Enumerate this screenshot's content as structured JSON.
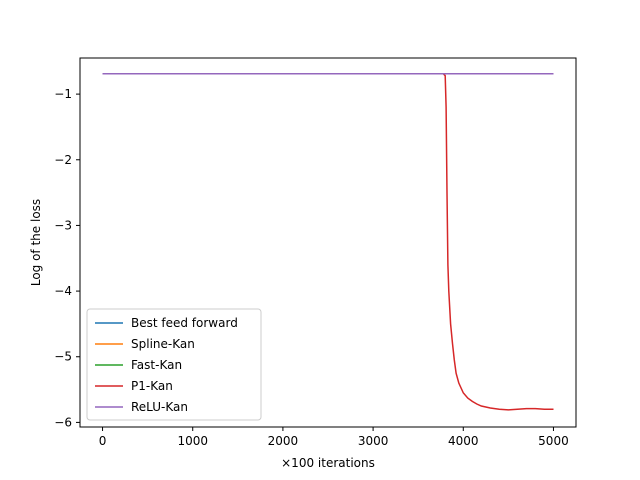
{
  "chart_data": {
    "type": "line",
    "title": "",
    "xlabel": "×100 iterations",
    "ylabel": "Log of the loss",
    "xlim": [
      -250,
      5250
    ],
    "ylim": [
      -6.07,
      -0.45
    ],
    "xticks": [
      0,
      1000,
      2000,
      3000,
      4000,
      5000
    ],
    "xtick_labels": [
      "0",
      "1000",
      "2000",
      "3000",
      "4000",
      "5000"
    ],
    "yticks": [
      -1,
      -2,
      -3,
      -4,
      -5,
      -6
    ],
    "ytick_labels": [
      "−1",
      "−2",
      "−3",
      "−4",
      "−5",
      "−6"
    ],
    "grid": false,
    "legend_position": "lower-left",
    "series": [
      {
        "name": "Best feed forward",
        "color": "#1f77b4",
        "points": [
          [
            0,
            -0.69
          ],
          [
            5000,
            -0.69
          ]
        ]
      },
      {
        "name": "Spline-Kan",
        "color": "#ff7f0e",
        "points": [
          [
            0,
            -0.69
          ],
          [
            5000,
            -0.69
          ]
        ]
      },
      {
        "name": "Fast-Kan",
        "color": "#2ca02c",
        "points": [
          [
            0,
            -0.69
          ],
          [
            5000,
            -0.69
          ]
        ]
      },
      {
        "name": "P1-Kan",
        "color": "#d62728",
        "points": [
          [
            0,
            -0.69
          ],
          [
            3780,
            -0.69
          ],
          [
            3800,
            -0.72
          ],
          [
            3810,
            -1.2
          ],
          [
            3820,
            -2.5
          ],
          [
            3830,
            -3.6
          ],
          [
            3840,
            -4.0
          ],
          [
            3860,
            -4.5
          ],
          [
            3880,
            -4.8
          ],
          [
            3900,
            -5.05
          ],
          [
            3920,
            -5.25
          ],
          [
            3950,
            -5.4
          ],
          [
            4000,
            -5.55
          ],
          [
            4050,
            -5.63
          ],
          [
            4100,
            -5.68
          ],
          [
            4150,
            -5.72
          ],
          [
            4200,
            -5.75
          ],
          [
            4300,
            -5.78
          ],
          [
            4400,
            -5.8
          ],
          [
            4500,
            -5.81
          ],
          [
            4600,
            -5.8
          ],
          [
            4700,
            -5.79
          ],
          [
            4800,
            -5.79
          ],
          [
            4900,
            -5.8
          ],
          [
            5000,
            -5.8
          ]
        ]
      },
      {
        "name": "ReLU-Kan",
        "color": "#9467bd",
        "points": [
          [
            0,
            -0.69
          ],
          [
            5000,
            -0.69
          ]
        ]
      }
    ]
  }
}
